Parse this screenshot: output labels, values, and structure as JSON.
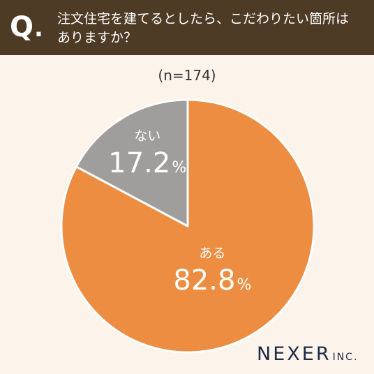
{
  "header": {
    "q_mark": "Q",
    "q_dot": ".",
    "question_line1": "注文住宅を建てるとしたら、こだわりたい箇所は",
    "question_line2": "ありますか？"
  },
  "sample_label": "(n=174)",
  "colors": {
    "header_bg": "#4d3b26",
    "background": "#fcf3ea",
    "slice_aru": "#ec8d42",
    "slice_nai": "#a09e9d"
  },
  "chart_data": {
    "type": "pie",
    "title": "",
    "categories": [
      "ある",
      "ない"
    ],
    "values": [
      82.8,
      17.2
    ],
    "value_suffix": "%",
    "colors": [
      "#ec8d42",
      "#a09e9d"
    ]
  },
  "logo": {
    "name": "NEXER",
    "suffix": "INC."
  }
}
